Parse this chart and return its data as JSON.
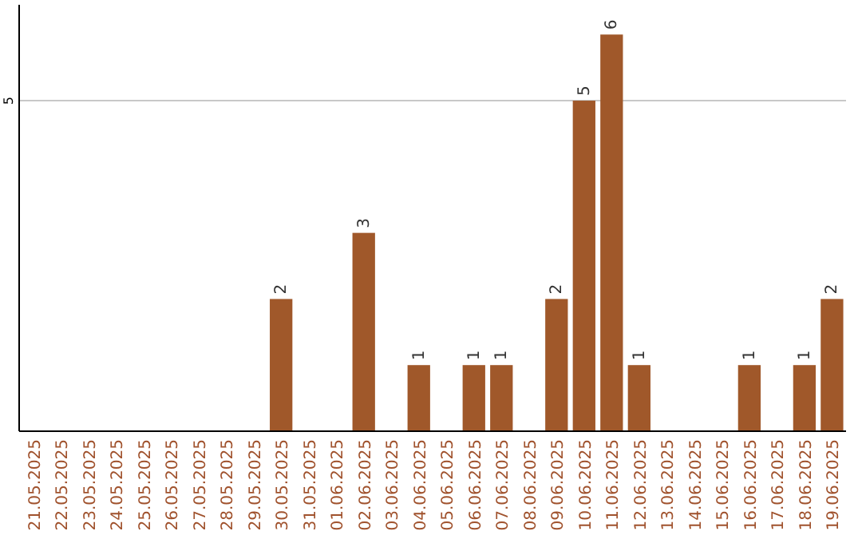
{
  "chart_data": {
    "type": "bar",
    "categories": [
      "21.05.2025",
      "22.05.2025",
      "23.05.2025",
      "24.05.2025",
      "25.05.2025",
      "26.05.2025",
      "27.05.2025",
      "28.05.2025",
      "29.05.2025",
      "30.05.2025",
      "31.05.2025",
      "01.06.2025",
      "02.06.2025",
      "03.06.2025",
      "04.06.2025",
      "05.06.2025",
      "06.06.2025",
      "07.06.2025",
      "08.06.2025",
      "09.06.2025",
      "10.06.2025",
      "11.06.2025",
      "12.06.2025",
      "13.06.2025",
      "14.06.2025",
      "15.06.2025",
      "16.06.2025",
      "17.06.2025",
      "18.06.2025",
      "19.06.2025"
    ],
    "values": [
      null,
      null,
      null,
      null,
      null,
      null,
      null,
      null,
      null,
      2,
      null,
      null,
      3,
      null,
      1,
      null,
      1,
      1,
      null,
      2,
      5,
      6,
      1,
      null,
      null,
      null,
      1,
      null,
      1,
      2
    ],
    "color": "#a0582a",
    "ylim": [
      0,
      6.45
    ],
    "yticks": [
      5
    ],
    "grid": "y",
    "data_labels": true
  }
}
